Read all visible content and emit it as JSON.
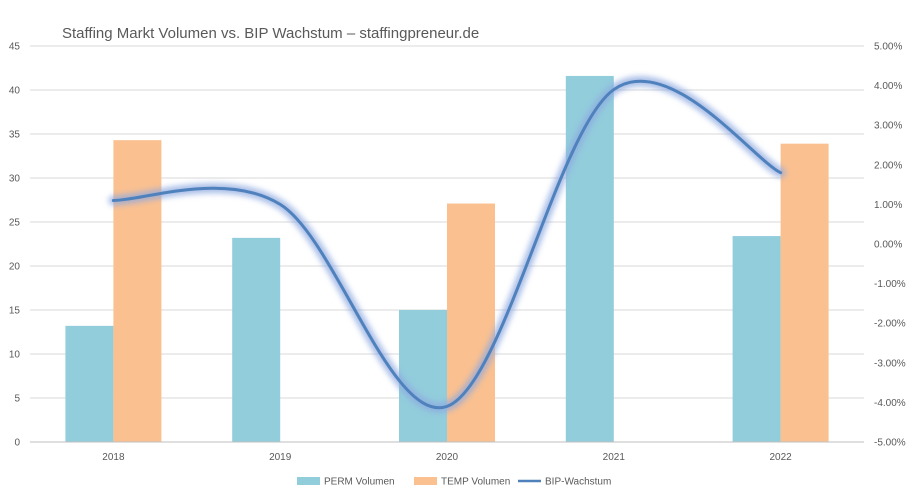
{
  "chart_data": {
    "type": "bar",
    "title": "Staffing Markt Volumen vs. BIP Wachstum – staffingpreneur.de",
    "categories": [
      "2018",
      "2019",
      "2020",
      "2021",
      "2022"
    ],
    "series": [
      {
        "name": "PERM Volumen",
        "type": "bar",
        "axis": "left",
        "color": "#92CDDC",
        "values": [
          13.2,
          23.2,
          15.0,
          41.6,
          23.4
        ]
      },
      {
        "name": "TEMP Volumen",
        "type": "bar",
        "axis": "left",
        "color": "#FAC090",
        "values": [
          34.3,
          null,
          27.1,
          null,
          33.9
        ]
      },
      {
        "name": "BIP-Wachstum",
        "type": "line",
        "axis": "right",
        "color": "#4F81BD",
        "values": [
          1.1,
          1.0,
          -4.1,
          3.9,
          1.8
        ]
      }
    ],
    "left_axis": {
      "ylim": [
        0,
        45
      ],
      "ticks": [
        "0",
        "5",
        "10",
        "15",
        "20",
        "25",
        "30",
        "35",
        "40",
        "45"
      ]
    },
    "right_axis": {
      "ylim": [
        -5.0,
        5.0
      ],
      "ticks": [
        "-5.00%",
        "-4.00%",
        "-3.00%",
        "-2.00%",
        "-1.00%",
        "0.00%",
        "1.00%",
        "2.00%",
        "3.00%",
        "4.00%",
        "5.00%"
      ]
    },
    "grid": true,
    "legend_position": "bottom",
    "xlabel": "",
    "ylabel": ""
  }
}
